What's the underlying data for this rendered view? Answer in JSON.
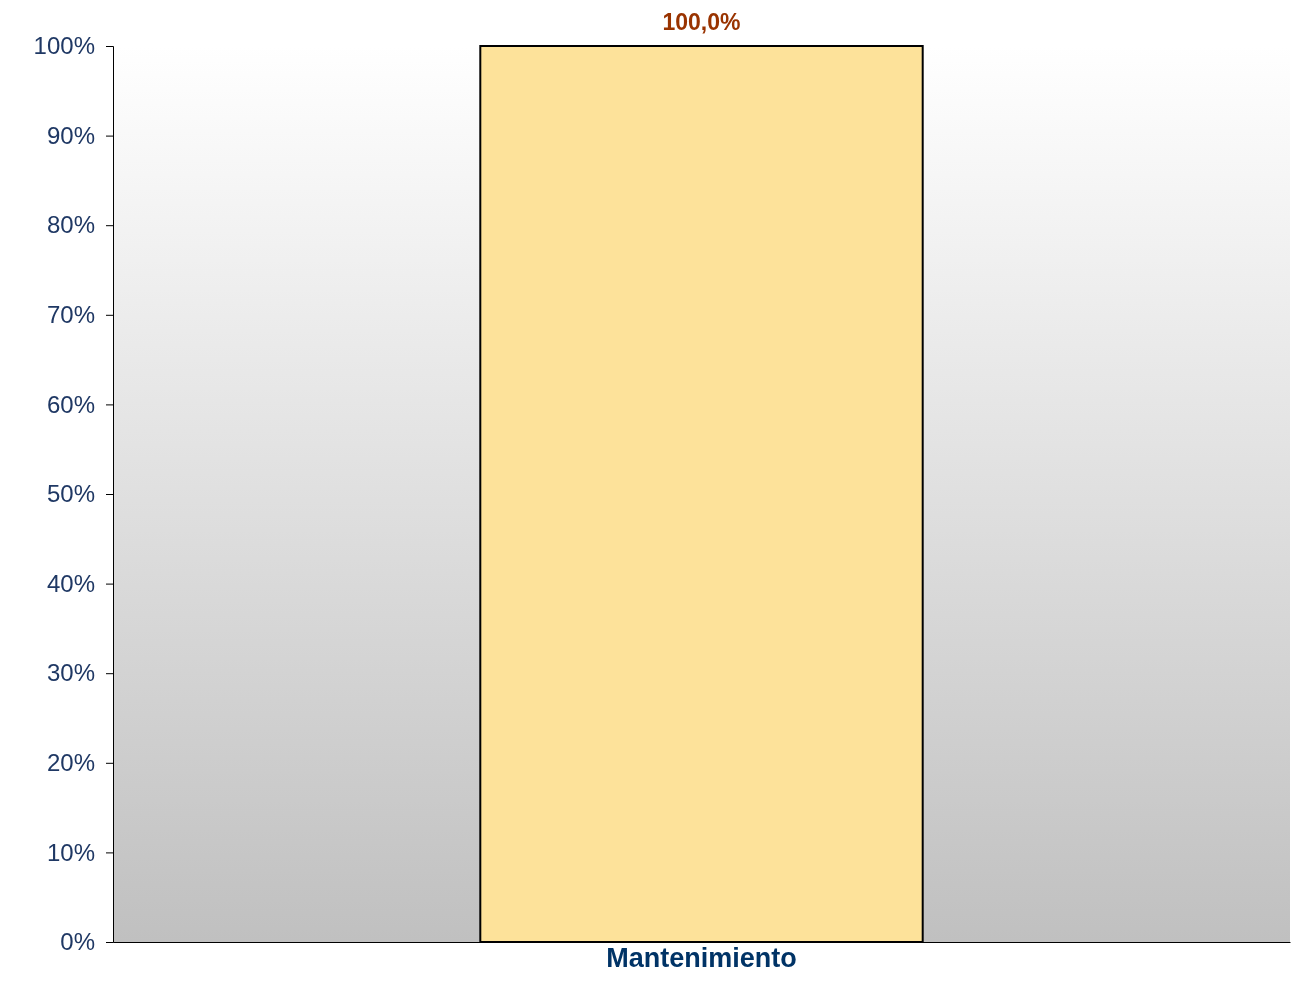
{
  "chart_data": {
    "type": "bar",
    "categories": [
      "Mantenimiento"
    ],
    "values": [
      100
    ],
    "value_labels": [
      "100,0%"
    ],
    "color": "#fde29a",
    "ylim": [
      0,
      100
    ],
    "yticks": [
      {
        "value": 0,
        "label": "0%"
      },
      {
        "value": 10,
        "label": "10%"
      },
      {
        "value": 20,
        "label": "20%"
      },
      {
        "value": 30,
        "label": "30%"
      },
      {
        "value": 40,
        "label": "40%"
      },
      {
        "value": 50,
        "label": "50%"
      },
      {
        "value": 60,
        "label": "60%"
      },
      {
        "value": 70,
        "label": "70%"
      },
      {
        "value": 80,
        "label": "80%"
      },
      {
        "value": 90,
        "label": "90%"
      },
      {
        "value": 100,
        "label": "100%"
      }
    ],
    "grid": false
  }
}
